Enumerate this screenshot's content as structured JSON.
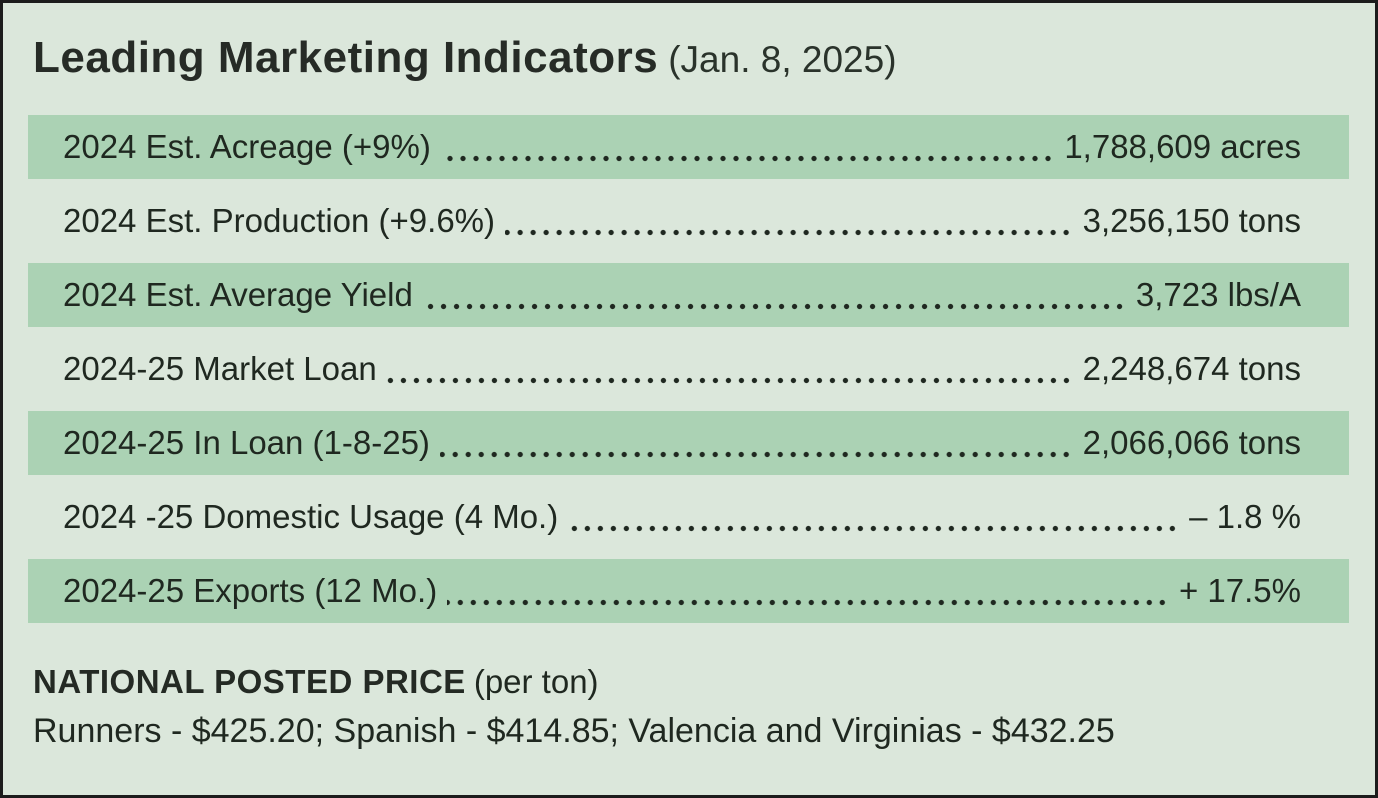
{
  "title": {
    "main": "Leading Marketing Indicators",
    "date": "(Jan. 8, 2025)"
  },
  "indicators": [
    {
      "label": "2024 Est. Acreage (+9%)",
      "value": "1,788,609 acres",
      "shaded": true
    },
    {
      "label": "2024 Est. Production (+9.6%)",
      "value": "3,256,150 tons",
      "shaded": false
    },
    {
      "label": "2024 Est. Average Yield",
      "value": "3,723 lbs/A",
      "shaded": true
    },
    {
      "label": "2024-25 Market Loan",
      "value": "2,248,674 tons",
      "shaded": false
    },
    {
      "label": "2024-25 In Loan (1-8-25)",
      "value": "2,066,066 tons",
      "shaded": true
    },
    {
      "label": "2024 -25 Domestic Usage (4 Mo.)",
      "value": "– 1.8 %",
      "shaded": false
    },
    {
      "label": "2024-25 Exports (12 Mo.)",
      "value": "+ 17.5%",
      "shaded": true
    }
  ],
  "footer": {
    "heading": "NATIONAL POSTED PRICE",
    "heading_suffix": "(per ton)",
    "prices_line": "Runners - $425.20; Spanish - $414.85; Valencia and Virginias - $432.25"
  },
  "colors": {
    "page_bg": "#dbe7db",
    "row_shaded": "#abd2b4",
    "text": "#1f2820",
    "border": "#1c1c1c"
  }
}
